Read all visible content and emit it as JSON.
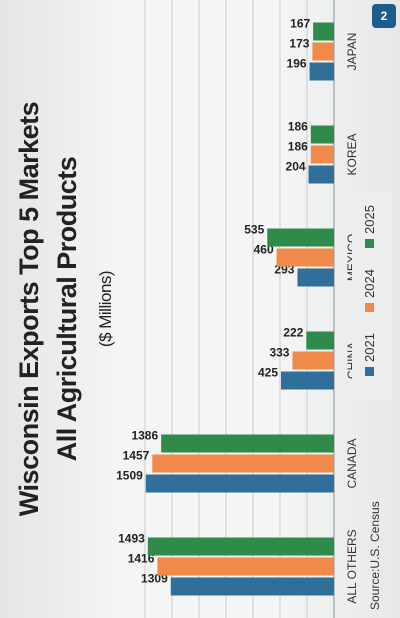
{
  "slide_badge": "2",
  "source": "Source:U.S. Census",
  "chart_data": {
    "type": "bar",
    "title": "Wisconsin Exports Top 5 Markets",
    "title_line2": "All Agricultural Products",
    "subtitle": "($ Millions)",
    "categories": [
      "ALL OTHERS",
      "CANADA",
      "CHINA",
      "MEXICO",
      "KOREA",
      "JAPAN"
    ],
    "series": [
      {
        "name": "2021",
        "color": "#2f6f9a",
        "values": [
          1309,
          1509,
          425,
          293,
          204,
          196
        ]
      },
      {
        "name": "2024",
        "color": "#f08a4b",
        "values": [
          1416,
          1457,
          333,
          460,
          186,
          173
        ]
      },
      {
        "name": "2025",
        "color": "#2e8b4a",
        "values": [
          1493,
          1386,
          222,
          535,
          186,
          167
        ]
      }
    ],
    "ylim": [
      0,
      1700
    ],
    "grid": true,
    "legend": "bottom",
    "xlabel": "",
    "ylabel": ""
  }
}
